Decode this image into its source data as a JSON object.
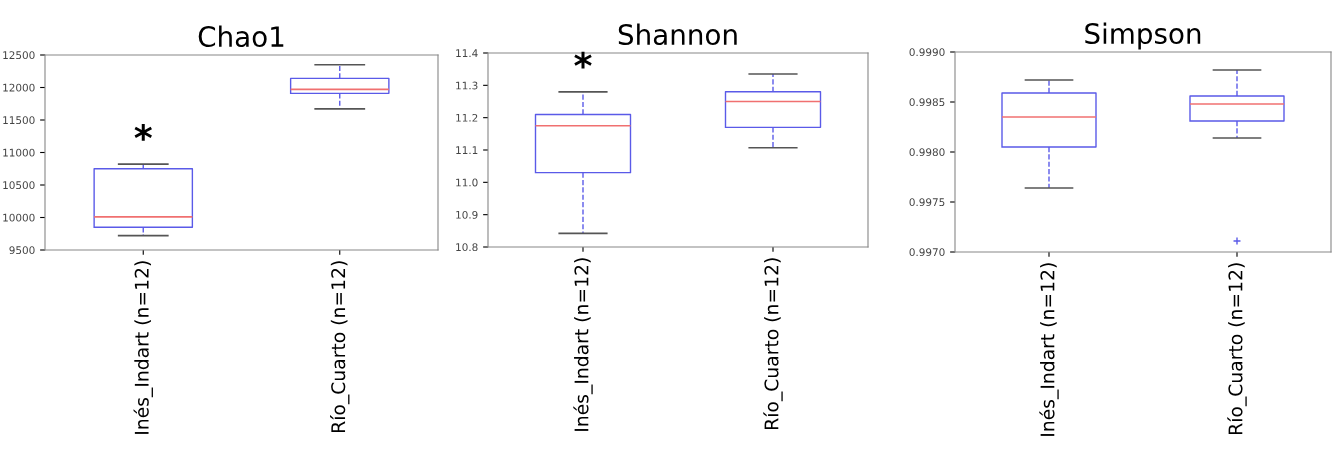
{
  "chart_data": [
    {
      "type": "box",
      "title": "Chao1",
      "categories": [
        "Inés_Indart (n=12)",
        "Río_Cuarto (n=12)"
      ],
      "boxes": [
        {
          "low": 9720,
          "q1": 9850,
          "median": 10010,
          "q3": 10750,
          "high": 10820
        },
        {
          "low": 11670,
          "q1": 11910,
          "median": 11970,
          "q3": 12140,
          "high": 12350
        }
      ],
      "ylim": [
        9500,
        12500
      ],
      "yticks": [
        9500,
        10000,
        10500,
        11000,
        11500,
        12000,
        12500
      ],
      "grid": false,
      "annotations": [
        "*"
      ]
    },
    {
      "type": "box",
      "title": "Shannon",
      "categories": [
        "Inés_Indart (n=12)",
        "Río_Cuarto (n=12)"
      ],
      "boxes": [
        {
          "low": 10.842,
          "q1": 11.03,
          "median": 11.175,
          "q3": 11.21,
          "high": 11.28
        },
        {
          "low": 11.107,
          "q1": 11.17,
          "median": 11.25,
          "q3": 11.28,
          "high": 11.335
        }
      ],
      "ylim": [
        10.8,
        11.4
      ],
      "yticks": [
        {
          "value": 10.8,
          "label": "10.8"
        },
        {
          "value": 10.9,
          "label": "10.9"
        },
        {
          "value": 11.0,
          "label": "11.0"
        },
        {
          "value": 11.1,
          "label": "11.1"
        },
        {
          "value": 11.2,
          "label": "11.2"
        },
        {
          "value": 11.3,
          "label": "11.3"
        },
        {
          "value": 11.4,
          "label": "11.4"
        }
      ],
      "grid": false,
      "annotations": [
        "*"
      ]
    },
    {
      "type": "box",
      "title": "Simpson",
      "categories": [
        "Inés_Indart (n=12)",
        "Río_Cuarto (n=12)"
      ],
      "boxes": [
        {
          "low": 0.99764,
          "q1": 0.99805,
          "median": 0.99835,
          "q3": 0.99859,
          "high": 0.99872
        },
        {
          "low": 0.99814,
          "q1": 0.99831,
          "median": 0.99848,
          "q3": 0.99856,
          "high": 0.99882,
          "outliers": [
            0.99711
          ]
        }
      ],
      "ylim": [
        0.997,
        0.999
      ],
      "yticks": [
        {
          "value": 0.997,
          "label": "0.9970"
        },
        {
          "value": 0.9975,
          "label": "0.9975"
        },
        {
          "value": 0.998,
          "label": "0.9980"
        },
        {
          "value": 0.9985,
          "label": "0.9985"
        },
        {
          "value": 0.999,
          "label": "0.9990"
        }
      ],
      "grid": false
    }
  ]
}
